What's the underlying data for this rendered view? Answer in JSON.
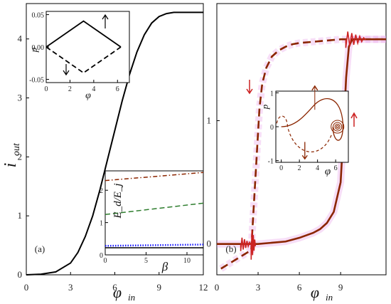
{
  "chart_data": [
    {
      "id": "a",
      "type": "line",
      "panel_label": "(a)",
      "xlabel": "φ",
      "xlabel_sub": "in",
      "ylabel": "i",
      "ylabel_sub": "out",
      "xlim": [
        0,
        12
      ],
      "ylim": [
        0,
        4.6
      ],
      "xticks": [
        0,
        3,
        6,
        9,
        12
      ],
      "yticks": [
        0,
        1,
        2,
        3,
        4
      ],
      "series": [
        {
          "values_x": [
            0,
            1,
            2,
            3,
            3.5,
            4,
            4.5,
            5,
            5.5,
            6,
            6.5,
            7,
            7.5,
            8,
            8.5,
            9,
            9.5,
            10,
            10.5,
            11,
            11.5,
            12
          ],
          "values_y": [
            0,
            0.01,
            0.05,
            0.2,
            0.38,
            0.65,
            1.0,
            1.45,
            1.95,
            2.45,
            2.95,
            3.4,
            3.78,
            4.07,
            4.27,
            4.38,
            4.43,
            4.45,
            4.45,
            4.45,
            4.45,
            4.45
          ],
          "color": "#000000",
          "style": "solid"
        }
      ],
      "insets": [
        {
          "id": "a-top",
          "type": "line",
          "xlabel": "φ",
          "ylabel": "p",
          "xlim": [
            0,
            7
          ],
          "ylim": [
            -0.055,
            0.055
          ],
          "xticks": [
            0,
            2,
            4,
            6
          ],
          "yticks": [
            -0.05,
            0.0,
            0.05
          ],
          "ytick_labels": [
            "-0.05",
            "0.00",
            "0.05"
          ],
          "series": [
            {
              "values_x": [
                0,
                3.14,
                6.28
              ],
              "values_y": [
                0,
                0.04,
                0
              ],
              "color": "#000000",
              "style": "solid"
            },
            {
              "values_x": [
                0,
                3.14,
                6.28
              ],
              "values_y": [
                0,
                -0.04,
                0
              ],
              "color": "#000000",
              "style": "dashed"
            }
          ]
        },
        {
          "id": "a-bottom",
          "type": "line",
          "xlabel": "β",
          "ylabel": "E_d/E_j",
          "xlim": [
            0,
            12
          ],
          "ylim": [
            0,
            2.6
          ],
          "xticks": [
            0,
            5,
            10
          ],
          "yticks": [
            0,
            1,
            2
          ],
          "series": [
            {
              "values_x": [
                0,
                12
              ],
              "values_y": [
                2.3,
                2.55
              ],
              "color": "#8B2500",
              "style": "dashdot"
            },
            {
              "values_x": [
                0,
                12
              ],
              "values_y": [
                1.25,
                1.6
              ],
              "color": "#2e7d2e",
              "style": "dashed"
            },
            {
              "values_x": [
                0,
                12
              ],
              "values_y": [
                0.28,
                0.32
              ],
              "color": "#1a1aff",
              "style": "dotted"
            },
            {
              "values_x": [
                0,
                12
              ],
              "values_y": [
                0.22,
                0.22
              ],
              "color": "#000000",
              "style": "solid"
            }
          ]
        }
      ]
    },
    {
      "id": "b",
      "type": "line",
      "panel_label": "(b)",
      "xlabel": "φ",
      "xlabel_sub": "in",
      "xlim": [
        0,
        12.3
      ],
      "ylim": [
        -0.25,
        1.95
      ],
      "xticks": [
        0,
        3,
        6,
        9
      ],
      "yticks": [
        0,
        1
      ],
      "series": [
        {
          "style": "dashed",
          "color": "#8B2500",
          "values_x": [
            0.3,
            2.5,
            3.1,
            3.3,
            3.6,
            4.0,
            4.5,
            5.0,
            5.5,
            6.0,
            7.0,
            8.0,
            9.0,
            10.0,
            11.0,
            12.3
          ],
          "values_y": [
            -0.2,
            -0.05,
            1.1,
            1.3,
            1.43,
            1.52,
            1.57,
            1.6,
            1.62,
            1.63,
            1.64,
            1.65,
            1.66,
            1.66,
            1.66,
            1.66
          ]
        },
        {
          "style": "solid",
          "color": "#8B2500",
          "values_x": [
            0,
            2,
            3,
            4,
            5,
            6,
            7,
            7.5,
            8,
            8.5,
            9,
            9.2,
            9.4,
            9.6,
            9.8,
            10,
            10.5,
            11,
            12.3
          ],
          "values_y": [
            0,
            0,
            0,
            0.01,
            0.02,
            0.05,
            0.09,
            0.12,
            0.17,
            0.26,
            0.5,
            0.9,
            1.35,
            1.6,
            1.65,
            1.66,
            1.66,
            1.66,
            1.66
          ]
        }
      ],
      "insets": [
        {
          "id": "b-phase",
          "type": "line",
          "xlabel": "φ",
          "ylabel": "p",
          "xlim": [
            -0.6,
            7.4
          ],
          "ylim": [
            -1.05,
            1.05
          ],
          "xticks": [
            0,
            2,
            4,
            6
          ],
          "yticks": [
            -1,
            0,
            1
          ]
        }
      ]
    }
  ]
}
